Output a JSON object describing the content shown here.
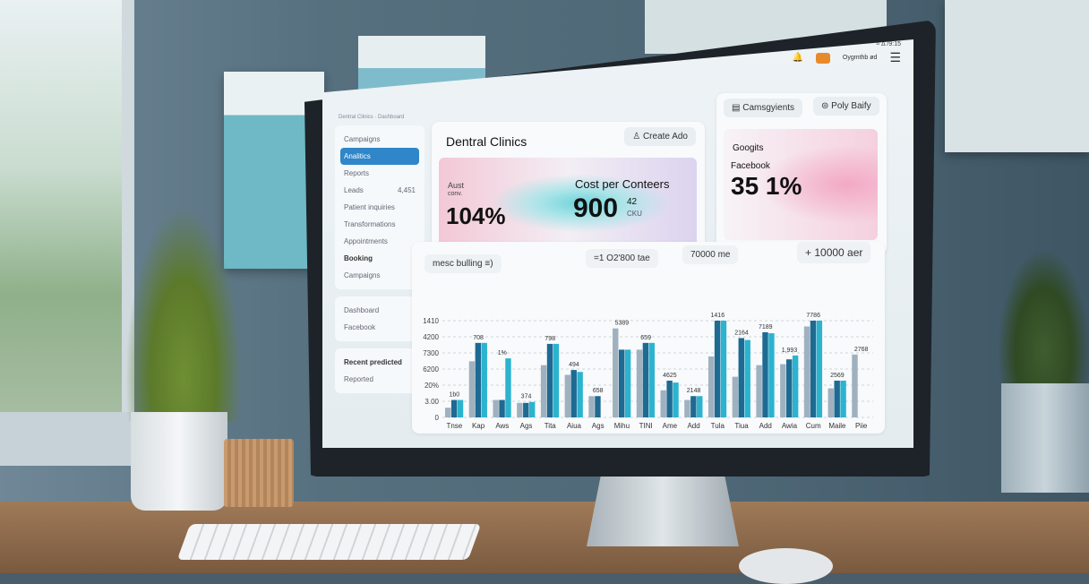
{
  "topbar": {
    "status": "≈ ∆ /9:15",
    "user": "Oygmthb ød"
  },
  "header": {
    "title_strip": "Dentral Clinics · Dashboard"
  },
  "sidebar": {
    "items": [
      {
        "label": "Campaigns"
      },
      {
        "label": "Analitics",
        "active": true
      },
      {
        "label": "Reports"
      },
      {
        "label": "Leads",
        "count": "4,451"
      },
      {
        "label": "Patient inquiries"
      },
      {
        "label": "Transformations"
      },
      {
        "label": "Appointments"
      },
      {
        "label": "Booking"
      },
      {
        "label": "Campaigns"
      },
      {
        "label": "Dashboard"
      },
      {
        "label": "Facebook"
      },
      {
        "label": "Recent predicted"
      },
      {
        "label": "Reported"
      }
    ]
  },
  "main": {
    "title": "Dentral Clinics",
    "create_ad": "Create Ado",
    "metric1": {
      "label1": "Aust",
      "label2": "conv.",
      "value": "104%"
    },
    "metric2": {
      "label": "Cost per Conteers",
      "value": "900",
      "sup": "42",
      "sub": "CKU"
    },
    "campaigns_btn": "Camsgyients",
    "poly_btn": "Poly Baify",
    "google": "Googits",
    "facebook": "Facebook",
    "metric3": "35 1%"
  },
  "chart_panel": {
    "filter": "mesc bulling",
    "filter_icon": "≡)",
    "callout1": "=1 O2'800 tae",
    "callout2": "70000 me",
    "callout3": "+ 10000 aer"
  },
  "chart_data": {
    "type": "bar",
    "categories": [
      "Tnse",
      "Kap",
      "Aws",
      "Ags",
      "Tita",
      "Aiua",
      "Ags",
      "Mihu",
      "TINI",
      "Ame",
      "Add",
      "Tula",
      "Tiua",
      "Add",
      "Awia",
      "Cum",
      "Maile",
      "Piie"
    ],
    "yticks": [
      "0",
      "3.00",
      "20%",
      "6200",
      "7300",
      "4200",
      "1410"
    ],
    "series": [
      {
        "values": [
          10,
          58,
          18,
          15,
          54,
          44,
          22,
          92,
          70,
          28,
          18,
          63,
          42,
          54,
          55,
          94,
          30,
          65
        ]
      },
      {
        "values": [
          18,
          77,
          18,
          15,
          76,
          49,
          22,
          70,
          77,
          38,
          22,
          100,
          82,
          88,
          60,
          100,
          38,
          0
        ]
      },
      {
        "values": [
          18,
          77,
          61,
          16,
          76,
          47,
          0,
          70,
          77,
          36,
          22,
          100,
          80,
          87,
          64,
          100,
          38,
          0
        ]
      }
    ],
    "data_labels": [
      "1b0",
      "708",
      "1%",
      "374",
      "798",
      "494",
      "658",
      "5389",
      "659",
      "4625",
      "2148",
      "1416",
      "2164",
      "7189",
      "1,993",
      "7786",
      "2569",
      "2768"
    ],
    "colors": {
      "light": "#9fb1bf",
      "dark": "#1e6a92",
      "cyan": "#2bb3cf"
    },
    "grid": true
  }
}
